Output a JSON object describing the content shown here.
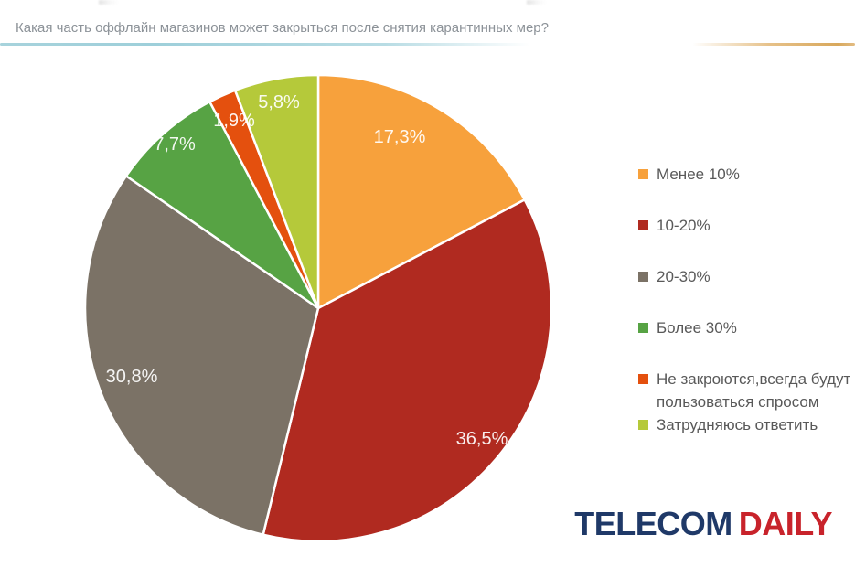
{
  "chart_data": {
    "type": "pie",
    "title": "Какая часть оффлайн магазинов может закрыться после снятия карантинных мер?",
    "labels": [
      "Менее 10%",
      "10-20%",
      "20-30%",
      "Более 30%",
      "Не закроются,всегда будут пользоваться спросом",
      "Затрудняюсь ответить"
    ],
    "values": [
      17.3,
      36.5,
      30.8,
      7.7,
      1.9,
      5.8
    ],
    "value_labels": [
      "17,3%",
      "36,5%",
      "30,8%",
      "7,7%",
      "1,9%",
      "5,8%"
    ],
    "colors": [
      "#F7A13C",
      "#B02A20",
      "#7B7266",
      "#57A344",
      "#E4500E",
      "#B5C93A"
    ],
    "slice_border_color": "#FFFFFF",
    "legend_position": "right",
    "start_angle_deg": 0,
    "direction": "clockwise",
    "label_color": "#FFFFFF",
    "title_color": "#8C9298"
  },
  "accent_line": {
    "left_color": "#9ECFDA",
    "right_color": "#D8A85C"
  },
  "brand": {
    "part1": "TELECOM",
    "part2": "DAILY",
    "part1_color": "#1F3968",
    "part2_color": "#C8232B"
  }
}
